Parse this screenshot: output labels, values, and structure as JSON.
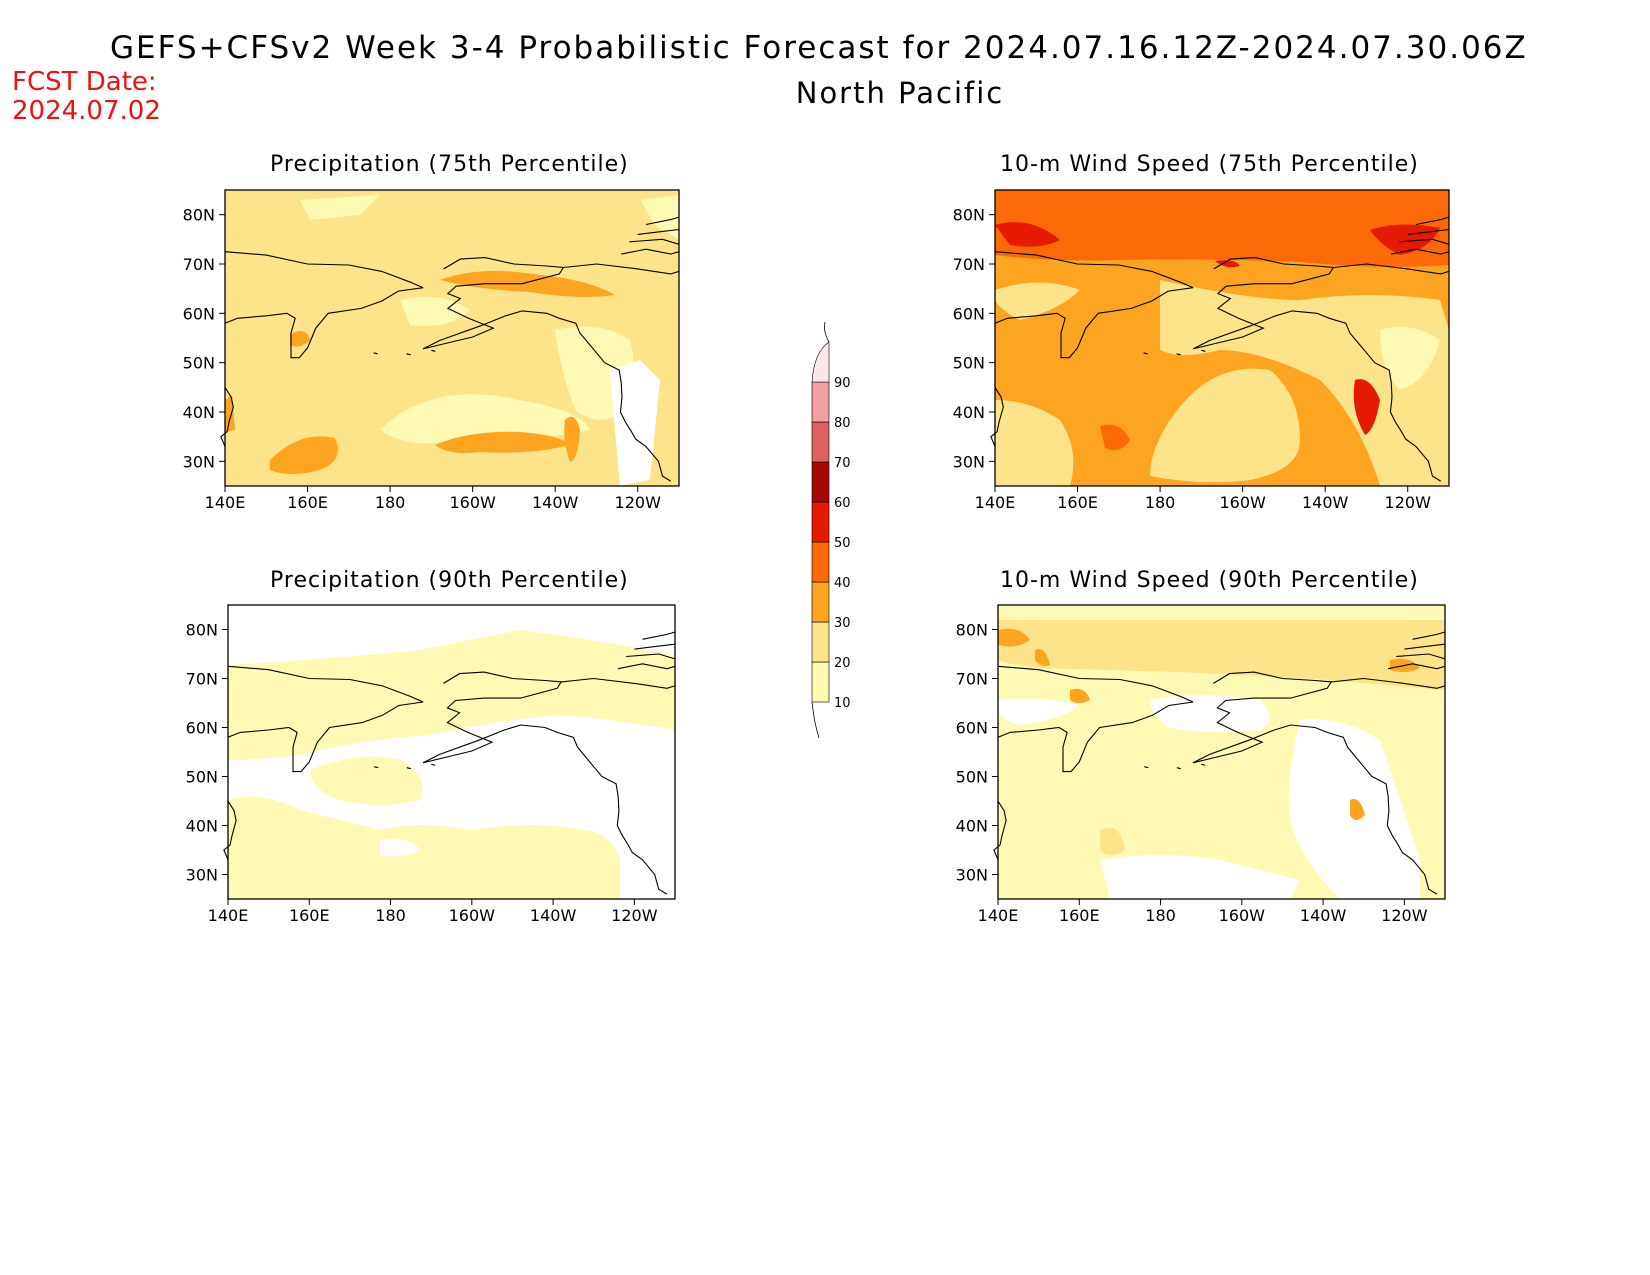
{
  "header": {
    "title": "GEFS+CFSv2 Week 3-4 Probabilistic Forecast for 2024.07.16.12Z-2024.07.30.06Z",
    "region": "North Pacific",
    "fcst_label": "FCST Date:",
    "fcst_date": "2024.07.02"
  },
  "axes": {
    "lon_labels": [
      "140E",
      "160E",
      "180",
      "160W",
      "140W",
      "120W"
    ],
    "lat_labels": [
      "30N",
      "40N",
      "50N",
      "60N",
      "70N",
      "80N"
    ]
  },
  "panels": [
    {
      "id": "precip75",
      "title": "Precipitation (75th Percentile)",
      "base_color": "#fde38a"
    },
    {
      "id": "wind75",
      "title": "10-m Wind Speed (75th Percentile)",
      "base_color": "#fda421"
    },
    {
      "id": "precip90",
      "title": "Precipitation (90th Percentile)",
      "base_color": "#ffffff"
    },
    {
      "id": "wind90",
      "title": "10-m Wind Speed (90th Percentile)",
      "base_color": "#fef6b0"
    }
  ],
  "colorbar": {
    "levels": [
      "10",
      "20",
      "30",
      "40",
      "50",
      "60",
      "70",
      "80",
      "90"
    ],
    "colors": [
      "#fefab4",
      "#fde38a",
      "#fda421",
      "#fc6a07",
      "#e41a03",
      "#a30802",
      "#de6060",
      "#f3a0a0",
      "#fde6e6"
    ]
  }
}
